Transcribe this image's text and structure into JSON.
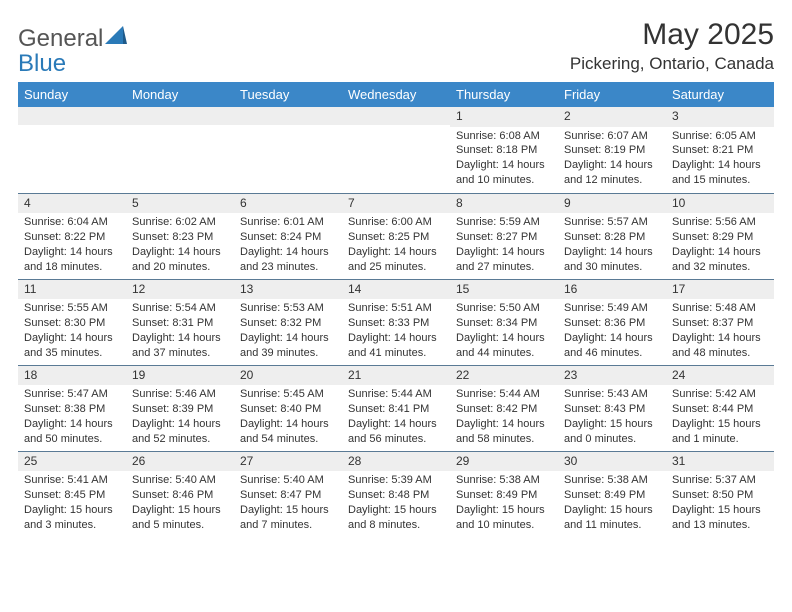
{
  "logo": {
    "part1": "General",
    "part2": "Blue"
  },
  "title": "May 2025",
  "location": "Pickering, Ontario, Canada",
  "colors": {
    "header_bg": "#3b87c8",
    "header_text": "#ffffff",
    "daynum_bg": "#eeeeee",
    "rule": "#5a7a95",
    "logo_gray": "#555555",
    "logo_blue": "#2a7ab8",
    "text": "#333333"
  },
  "day_headers": [
    "Sunday",
    "Monday",
    "Tuesday",
    "Wednesday",
    "Thursday",
    "Friday",
    "Saturday"
  ],
  "weeks": [
    [
      null,
      null,
      null,
      null,
      {
        "n": "1",
        "sr": "Sunrise: 6:08 AM",
        "ss": "Sunset: 8:18 PM",
        "dl1": "Daylight: 14 hours",
        "dl2": "and 10 minutes."
      },
      {
        "n": "2",
        "sr": "Sunrise: 6:07 AM",
        "ss": "Sunset: 8:19 PM",
        "dl1": "Daylight: 14 hours",
        "dl2": "and 12 minutes."
      },
      {
        "n": "3",
        "sr": "Sunrise: 6:05 AM",
        "ss": "Sunset: 8:21 PM",
        "dl1": "Daylight: 14 hours",
        "dl2": "and 15 minutes."
      }
    ],
    [
      {
        "n": "4",
        "sr": "Sunrise: 6:04 AM",
        "ss": "Sunset: 8:22 PM",
        "dl1": "Daylight: 14 hours",
        "dl2": "and 18 minutes."
      },
      {
        "n": "5",
        "sr": "Sunrise: 6:02 AM",
        "ss": "Sunset: 8:23 PM",
        "dl1": "Daylight: 14 hours",
        "dl2": "and 20 minutes."
      },
      {
        "n": "6",
        "sr": "Sunrise: 6:01 AM",
        "ss": "Sunset: 8:24 PM",
        "dl1": "Daylight: 14 hours",
        "dl2": "and 23 minutes."
      },
      {
        "n": "7",
        "sr": "Sunrise: 6:00 AM",
        "ss": "Sunset: 8:25 PM",
        "dl1": "Daylight: 14 hours",
        "dl2": "and 25 minutes."
      },
      {
        "n": "8",
        "sr": "Sunrise: 5:59 AM",
        "ss": "Sunset: 8:27 PM",
        "dl1": "Daylight: 14 hours",
        "dl2": "and 27 minutes."
      },
      {
        "n": "9",
        "sr": "Sunrise: 5:57 AM",
        "ss": "Sunset: 8:28 PM",
        "dl1": "Daylight: 14 hours",
        "dl2": "and 30 minutes."
      },
      {
        "n": "10",
        "sr": "Sunrise: 5:56 AM",
        "ss": "Sunset: 8:29 PM",
        "dl1": "Daylight: 14 hours",
        "dl2": "and 32 minutes."
      }
    ],
    [
      {
        "n": "11",
        "sr": "Sunrise: 5:55 AM",
        "ss": "Sunset: 8:30 PM",
        "dl1": "Daylight: 14 hours",
        "dl2": "and 35 minutes."
      },
      {
        "n": "12",
        "sr": "Sunrise: 5:54 AM",
        "ss": "Sunset: 8:31 PM",
        "dl1": "Daylight: 14 hours",
        "dl2": "and 37 minutes."
      },
      {
        "n": "13",
        "sr": "Sunrise: 5:53 AM",
        "ss": "Sunset: 8:32 PM",
        "dl1": "Daylight: 14 hours",
        "dl2": "and 39 minutes."
      },
      {
        "n": "14",
        "sr": "Sunrise: 5:51 AM",
        "ss": "Sunset: 8:33 PM",
        "dl1": "Daylight: 14 hours",
        "dl2": "and 41 minutes."
      },
      {
        "n": "15",
        "sr": "Sunrise: 5:50 AM",
        "ss": "Sunset: 8:34 PM",
        "dl1": "Daylight: 14 hours",
        "dl2": "and 44 minutes."
      },
      {
        "n": "16",
        "sr": "Sunrise: 5:49 AM",
        "ss": "Sunset: 8:36 PM",
        "dl1": "Daylight: 14 hours",
        "dl2": "and 46 minutes."
      },
      {
        "n": "17",
        "sr": "Sunrise: 5:48 AM",
        "ss": "Sunset: 8:37 PM",
        "dl1": "Daylight: 14 hours",
        "dl2": "and 48 minutes."
      }
    ],
    [
      {
        "n": "18",
        "sr": "Sunrise: 5:47 AM",
        "ss": "Sunset: 8:38 PM",
        "dl1": "Daylight: 14 hours",
        "dl2": "and 50 minutes."
      },
      {
        "n": "19",
        "sr": "Sunrise: 5:46 AM",
        "ss": "Sunset: 8:39 PM",
        "dl1": "Daylight: 14 hours",
        "dl2": "and 52 minutes."
      },
      {
        "n": "20",
        "sr": "Sunrise: 5:45 AM",
        "ss": "Sunset: 8:40 PM",
        "dl1": "Daylight: 14 hours",
        "dl2": "and 54 minutes."
      },
      {
        "n": "21",
        "sr": "Sunrise: 5:44 AM",
        "ss": "Sunset: 8:41 PM",
        "dl1": "Daylight: 14 hours",
        "dl2": "and 56 minutes."
      },
      {
        "n": "22",
        "sr": "Sunrise: 5:44 AM",
        "ss": "Sunset: 8:42 PM",
        "dl1": "Daylight: 14 hours",
        "dl2": "and 58 minutes."
      },
      {
        "n": "23",
        "sr": "Sunrise: 5:43 AM",
        "ss": "Sunset: 8:43 PM",
        "dl1": "Daylight: 15 hours",
        "dl2": "and 0 minutes."
      },
      {
        "n": "24",
        "sr": "Sunrise: 5:42 AM",
        "ss": "Sunset: 8:44 PM",
        "dl1": "Daylight: 15 hours",
        "dl2": "and 1 minute."
      }
    ],
    [
      {
        "n": "25",
        "sr": "Sunrise: 5:41 AM",
        "ss": "Sunset: 8:45 PM",
        "dl1": "Daylight: 15 hours",
        "dl2": "and 3 minutes."
      },
      {
        "n": "26",
        "sr": "Sunrise: 5:40 AM",
        "ss": "Sunset: 8:46 PM",
        "dl1": "Daylight: 15 hours",
        "dl2": "and 5 minutes."
      },
      {
        "n": "27",
        "sr": "Sunrise: 5:40 AM",
        "ss": "Sunset: 8:47 PM",
        "dl1": "Daylight: 15 hours",
        "dl2": "and 7 minutes."
      },
      {
        "n": "28",
        "sr": "Sunrise: 5:39 AM",
        "ss": "Sunset: 8:48 PM",
        "dl1": "Daylight: 15 hours",
        "dl2": "and 8 minutes."
      },
      {
        "n": "29",
        "sr": "Sunrise: 5:38 AM",
        "ss": "Sunset: 8:49 PM",
        "dl1": "Daylight: 15 hours",
        "dl2": "and 10 minutes."
      },
      {
        "n": "30",
        "sr": "Sunrise: 5:38 AM",
        "ss": "Sunset: 8:49 PM",
        "dl1": "Daylight: 15 hours",
        "dl2": "and 11 minutes."
      },
      {
        "n": "31",
        "sr": "Sunrise: 5:37 AM",
        "ss": "Sunset: 8:50 PM",
        "dl1": "Daylight: 15 hours",
        "dl2": "and 13 minutes."
      }
    ]
  ]
}
